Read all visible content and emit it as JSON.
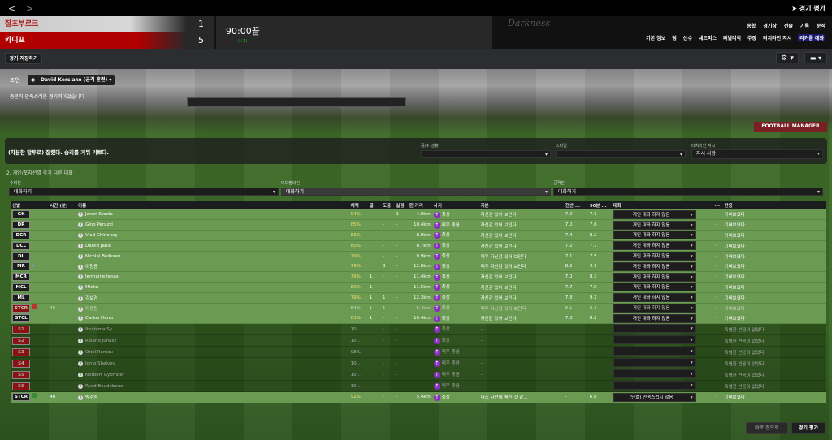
{
  "nav": {
    "back": "<",
    "forward": ">"
  },
  "match": {
    "home": "잘츠부르크",
    "away": "카디프",
    "home_score": "1",
    "away_score": "5",
    "time": "90:00끝",
    "added": "(+1)",
    "logo": "Darkness"
  },
  "header": {
    "eval_link": "경기 평가",
    "menu_main": [
      "종합",
      "경기장",
      "전술",
      "기록",
      "분석"
    ],
    "menu_sub": [
      "기본 정보",
      "팀",
      "선수",
      "세트피스",
      "페널티킥",
      "주장",
      "터치라인 지시",
      "라커룸 대화"
    ],
    "menu_sub_selected": 7
  },
  "toolbar": {
    "save": "경기 저장하기",
    "settings_icon": "gear-icon",
    "chat_icon": "speech-bubble-icon"
  },
  "advice": {
    "label": "조언",
    "selected": "David Kerslake (공격 훈련)",
    "text": "충분히 만족스러운 경기력이었습니다"
  },
  "stadium": {
    "ad_banner": "FOOTBALL MANAGER"
  },
  "talk": {
    "text": "(차분한 말투로) 잘했다. 승리를 거둬 기쁘다.",
    "tone_label": "공/수 성향",
    "tone_value": "",
    "style_label": "스타일",
    "style_value": "",
    "touchline_label": "터치라인 지시",
    "touchline_value": "지시 사항"
  },
  "group": {
    "title": "2. 개인/포지션별 각기 다른 대화",
    "def_label": "수비진",
    "def_value": "대화하기",
    "mid_label": "미드필더진",
    "mid_value": "대화하기",
    "att_label": "공격진",
    "att_value": "대화하기"
  },
  "columns": [
    "선발",
    "시간 (분)",
    "이름",
    "체력",
    "골",
    "도움",
    "실점",
    "뛴 거리",
    "사기",
    "기분",
    "전반 ...",
    "90분 ...",
    "대화",
    "...",
    "반응"
  ],
  "players": [
    {
      "pos": "GK",
      "time": "",
      "name": "Jason Steele",
      "stam": "94%",
      "g": "-",
      "a": "-",
      "c": "1",
      "dist": "4.0km",
      "morale": "최상",
      "mood": "자신감 있어 보인다",
      "h1": "7.0",
      "ft": "7.1",
      "talk": "개인 대화 하지 않음",
      "react": "기뻐보였다",
      "type": "st"
    },
    {
      "pos": "DR",
      "time": "",
      "name": "Gino Peruzzi",
      "stam": "85%",
      "g": "-",
      "a": "-",
      "c": "-",
      "dist": "10.4km",
      "morale": "매우 좋음",
      "mood": "자신감 있어 보인다",
      "h1": "7.0",
      "ft": "7.6",
      "talk": "개인 대화 하지 않음",
      "react": "기뻐보였다",
      "type": "st"
    },
    {
      "pos": "DCR",
      "time": "",
      "name": "Vlad Chiricheş",
      "stam": "83%",
      "g": "-",
      "a": "-",
      "c": "-",
      "dist": "8.9km",
      "morale": "최상",
      "mood": "자신감 있어 보인다",
      "h1": "7.4",
      "ft": "8.2",
      "talk": "개인 대화 하지 않음",
      "react": "기뻐보였다",
      "type": "st"
    },
    {
      "pos": "DCL",
      "time": "",
      "name": "Dawid Janik",
      "stam": "80%",
      "g": "-",
      "a": "-",
      "c": "-",
      "dist": "8.7km",
      "morale": "최상",
      "mood": "자신감 있어 보인다",
      "h1": "7.2",
      "ft": "7.7",
      "talk": "개인 대화 하지 않음",
      "react": "기뻐보였다",
      "type": "st"
    },
    {
      "pos": "DL",
      "time": "",
      "name": "Nicolai Boilesen",
      "stam": "79%",
      "g": "-",
      "a": "-",
      "c": "-",
      "dist": "9.9km",
      "morale": "최상",
      "mood": "매우 자신감 있어 보인다",
      "h1": "7.1",
      "ft": "7.5",
      "talk": "개인 대화 하지 않음",
      "react": "기뻐보였다",
      "type": "st"
    },
    {
      "pos": "MR",
      "time": "",
      "name": "이청용",
      "stam": "79%",
      "g": "-",
      "a": "3",
      "c": "-",
      "dist": "12.6km",
      "morale": "최상",
      "mood": "매우 자신감 있어 보인다",
      "h1": "8.2",
      "ft": "9.1",
      "talk": "개인 대화 하지 않음",
      "react": "기뻐보였다",
      "type": "st",
      "star": true
    },
    {
      "pos": "MCR",
      "time": "",
      "name": "Jermaine Jenas",
      "stam": "79%",
      "g": "1",
      "a": "-",
      "c": "-",
      "dist": "11.4km",
      "morale": "최상",
      "mood": "자신감 있어 보인다",
      "h1": "7.0",
      "ft": "8.3",
      "talk": "개인 대화 하지 않음",
      "react": "기뻐보였다",
      "type": "st"
    },
    {
      "pos": "MCL",
      "time": "",
      "name": "Michu",
      "stam": "80%",
      "g": "1",
      "a": "-",
      "c": "-",
      "dist": "11.5km",
      "morale": "최상",
      "mood": "자신감 있어 보인다",
      "h1": "7.7",
      "ft": "7.9",
      "talk": "개인 대화 하지 않음",
      "react": "기뻐보였다",
      "type": "st"
    },
    {
      "pos": "ML",
      "time": "",
      "name": "김보경",
      "stam": "79%",
      "g": "1",
      "a": "1",
      "c": "-",
      "dist": "12.3km",
      "morale": "최상",
      "mood": "자신감 있어 보인다",
      "h1": "7.8",
      "ft": "9.1",
      "talk": "개인 대화 하지 않음",
      "react": "기뻐보였다",
      "type": "st"
    },
    {
      "pos": "STCR",
      "time": "48",
      "name": "지동원",
      "stam": "84%",
      "g": "1",
      "a": "1",
      "c": "-",
      "dist": "5.4km",
      "morale": "최상",
      "mood": "매우 자신감 있어 보인다",
      "h1": "8.1",
      "ft": "8.1",
      "talk": "개인 대화 하지 않음",
      "react": "기뻐보였다",
      "type": "st dim",
      "red": true,
      "subout": true
    },
    {
      "pos": "STCL",
      "time": "",
      "name": "Carlos Fierro",
      "stam": "83%",
      "g": "1",
      "a": "-",
      "c": "-",
      "dist": "10.4km",
      "morale": "최상",
      "mood": "자신감 있어 보인다",
      "h1": "7.8",
      "ft": "8.2",
      "talk": "개인 대화 하지 않음",
      "react": "기뻐보였다",
      "type": "st"
    },
    {
      "pos": "S1",
      "time": "",
      "name": "Ibrahima Sy",
      "stam": "10...",
      "g": "-",
      "a": "-",
      "c": "-",
      "dist": "",
      "morale": "최상",
      "mood": "-",
      "h1": "",
      "ft": "",
      "talk": "",
      "react": "특별한 반응이 없었다",
      "type": "sub",
      "red": true
    },
    {
      "pos": "S2",
      "time": "",
      "name": "Roland Juhász",
      "stam": "10...",
      "g": "-",
      "a": "-",
      "c": "-",
      "dist": "",
      "morale": "최상",
      "mood": "-",
      "h1": "",
      "ft": "",
      "talk": "",
      "react": "특별한 반응이 없었다",
      "type": "sub",
      "red": true
    },
    {
      "pos": "S3",
      "time": "",
      "name": "Oriol Romeu",
      "stam": "98%",
      "g": "-",
      "a": "-",
      "c": "-",
      "dist": "",
      "morale": "매우 좋음",
      "mood": "-",
      "h1": "",
      "ft": "",
      "talk": "",
      "react": "특별한 반응이 없었다",
      "type": "sub",
      "red": true
    },
    {
      "pos": "S4",
      "time": "",
      "name": "Jonjo Shelvey",
      "stam": "10...",
      "g": "-",
      "a": "-",
      "c": "-",
      "dist": "",
      "morale": "매우 좋음",
      "mood": "-",
      "h1": "",
      "ft": "",
      "talk": "",
      "react": "특별한 반응이 없었다",
      "type": "sub",
      "red": true
    },
    {
      "pos": "S5",
      "time": "",
      "name": "Norbert Gyomber",
      "stam": "10...",
      "g": "-",
      "a": "-",
      "c": "-",
      "dist": "",
      "morale": "매우 좋음",
      "mood": "-",
      "h1": "",
      "ft": "",
      "talk": "",
      "react": "특별한 반응이 없었다",
      "type": "sub",
      "red": true
    },
    {
      "pos": "S6",
      "time": "",
      "name": "Ryad Boudebouz",
      "stam": "10...",
      "g": "-",
      "a": "-",
      "c": "-",
      "dist": "",
      "morale": "매우 좋음",
      "mood": "-",
      "h1": "",
      "ft": "",
      "talk": "",
      "react": "특별한 반응이 없었다",
      "type": "sub",
      "red": true
    },
    {
      "pos": "STCR",
      "time": "48",
      "name": "박주영",
      "stam": "91%",
      "g": "-",
      "a": "-",
      "c": "-",
      "dist": "5.4km",
      "morale": "최상",
      "mood": "다소 자만에 빠진 것 같...",
      "h1": "-",
      "ft": "6.8",
      "talk": "(단호) 만족스럽지 않음",
      "react": "기뻐보였다",
      "type": "last",
      "subin": true
    }
  ],
  "footer": {
    "back_to_match": "바로 전으로",
    "match_eval": "경기 평가"
  }
}
